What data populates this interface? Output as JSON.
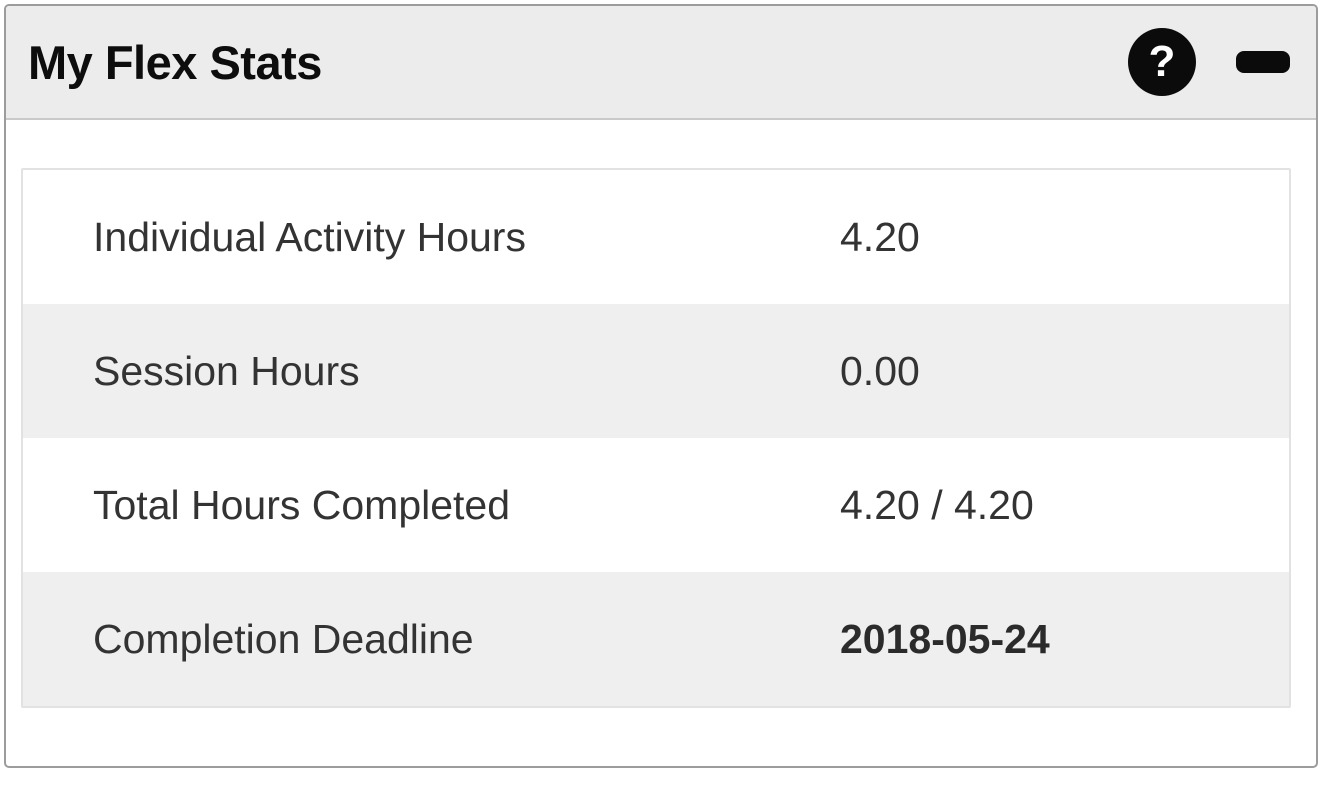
{
  "widget": {
    "title": "My Flex Stats",
    "header": {
      "help_glyph": "?",
      "help_icon_name": "help-icon",
      "collapse_icon_name": "minimize-icon"
    },
    "stats": [
      {
        "label": "Individual Activity Hours",
        "value": "4.20",
        "bold_value": false
      },
      {
        "label": "Session Hours",
        "value": "0.00",
        "bold_value": false
      },
      {
        "label": "Total Hours Completed",
        "value": "4.20 / 4.20",
        "bold_value": false
      },
      {
        "label": "Completion Deadline",
        "value": "2018-05-24",
        "bold_value": true
      }
    ],
    "colors": {
      "header_bg": "#ececec",
      "row_alt_bg": "#efefef",
      "widget_border": "#9c9c9c",
      "table_border": "#e2e2e2",
      "text": "#333333",
      "title_text": "#0d0d0d",
      "icon_bg": "#0b0b0b",
      "icon_fg": "#ffffff"
    }
  }
}
